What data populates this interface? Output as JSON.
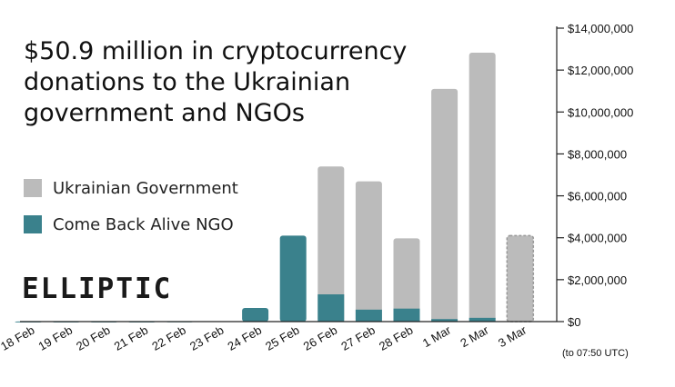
{
  "title_lines": [
    "$50.9 million in cryptocurrency",
    "donations to the Ukrainian",
    "government and NGOs"
  ],
  "logo_text": "ELLIPTIC",
  "colors": {
    "government": "#bbbbbb",
    "ngo": "#3a818c",
    "axis": "#222222"
  },
  "chart_data": {
    "type": "bar",
    "stacked": true,
    "categories": [
      "18 Feb",
      "19 Feb",
      "20 Feb",
      "21 Feb",
      "22 Feb",
      "23 Feb",
      "24 Feb",
      "25 Feb",
      "26 Feb",
      "27 Feb",
      "28 Feb",
      "1 Mar",
      "2 Mar",
      "3 Mar"
    ],
    "series": [
      {
        "name": "Come Back Alive NGO",
        "values": [
          5000,
          5000,
          5000,
          5000,
          10000,
          20000,
          650000,
          4100000,
          1300000,
          570000,
          620000,
          120000,
          180000,
          0
        ]
      },
      {
        "name": "Ukrainian Government",
        "values": [
          0,
          0,
          0,
          0,
          0,
          0,
          0,
          0,
          6100000,
          6120000,
          3350000,
          10980000,
          12650000,
          4100000
        ]
      }
    ],
    "partial_category": "3 Mar",
    "partial_note": "(to 07:50 UTC)",
    "ylim": [
      0,
      14000000
    ],
    "yticks": [
      0,
      2000000,
      4000000,
      6000000,
      8000000,
      10000000,
      12000000,
      14000000
    ],
    "ytick_labels": [
      "$0",
      "$2,000,000",
      "$4,000,000",
      "$6,000,000",
      "$8,000,000",
      "$10,000,000",
      "$12,000,000",
      "$14,000,000"
    ],
    "yaxis_side": "right",
    "grid": false,
    "legend_position": "left"
  }
}
